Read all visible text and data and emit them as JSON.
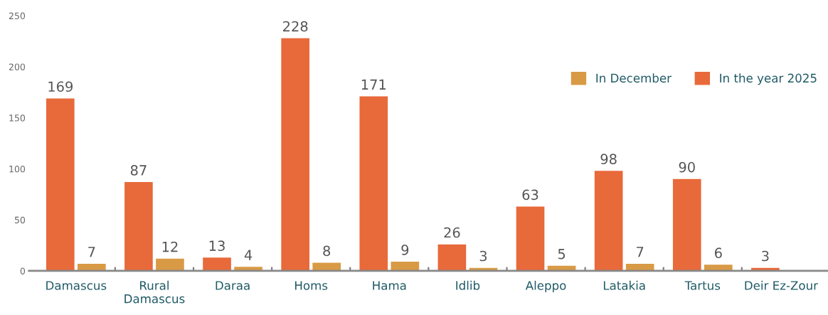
{
  "chart_data": {
    "type": "bar",
    "categories": [
      "Damascus",
      "Rural\nDamascus",
      "Daraa",
      "Homs",
      "Hama",
      "Idlib",
      "Aleppo",
      "Latakia",
      "Tartus",
      "Deir Ez-Zour"
    ],
    "series": [
      {
        "name": "In the year 2025",
        "color": "#e8693a",
        "values": [
          169,
          87,
          13,
          228,
          171,
          26,
          63,
          98,
          90,
          3
        ]
      },
      {
        "name": "In December",
        "color": "#d99a45",
        "values": [
          7,
          12,
          4,
          8,
          9,
          3,
          5,
          7,
          6,
          null
        ]
      }
    ],
    "data_labels": true,
    "ylim": [
      0,
      250
    ],
    "yticks": [
      0,
      50,
      100,
      150,
      200,
      250
    ],
    "grid": false,
    "legend": "top right"
  }
}
